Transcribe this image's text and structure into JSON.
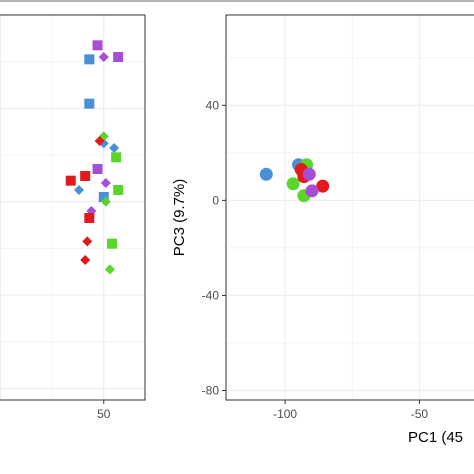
{
  "colors": {
    "red": "#e31a1c",
    "blue": "#4a90d9",
    "purple": "#a64ed6",
    "green": "#5ad62a",
    "axis": "#000000",
    "panel_border": "#333333",
    "grid": "#ececec",
    "tick_text": "#4d4d4d"
  },
  "chart_data": [
    {
      "type": "scatter",
      "panel": "left",
      "title": "",
      "xlabel": "",
      "ylabel": "",
      "x_ticks": [
        50
      ],
      "x_tick_labels": [
        "50"
      ],
      "xlim": [
        -10,
        70
      ],
      "ylim": [
        -85,
        80
      ],
      "grid": true,
      "legend": "none",
      "series": [
        {
          "color": "purple",
          "marker": "square",
          "points": [
            [
              47,
              67
            ],
            [
              57,
              62
            ],
            [
              47,
              14
            ]
          ]
        },
        {
          "color": "purple",
          "marker": "diamond",
          "points": [
            [
              50,
              62
            ],
            [
              51,
              8
            ],
            [
              44,
              -4
            ]
          ]
        },
        {
          "color": "blue",
          "marker": "square",
          "points": [
            [
              43,
              61
            ],
            [
              43,
              42
            ],
            [
              50,
              2
            ]
          ]
        },
        {
          "color": "blue",
          "marker": "diamond",
          "points": [
            [
              55,
              23
            ],
            [
              50,
              25
            ],
            [
              38,
              5
            ]
          ]
        },
        {
          "color": "green",
          "marker": "diamond",
          "points": [
            [
              50,
              28
            ],
            [
              51,
              0
            ],
            [
              53,
              -29
            ]
          ]
        },
        {
          "color": "green",
          "marker": "square",
          "points": [
            [
              56,
              19
            ],
            [
              57,
              5
            ],
            [
              54,
              -18
            ]
          ]
        },
        {
          "color": "red",
          "marker": "diamond",
          "points": [
            [
              48,
              26
            ],
            [
              42,
              -17
            ],
            [
              41,
              -25
            ]
          ]
        },
        {
          "color": "red",
          "marker": "square",
          "points": [
            [
              41,
              11
            ],
            [
              34,
              9
            ],
            [
              43,
              -7
            ]
          ]
        }
      ]
    },
    {
      "type": "scatter",
      "panel": "right",
      "title": "",
      "xlabel": "PC1 (45",
      "ylabel": "PC3 (9.7%)",
      "x_ticks": [
        -100,
        -50
      ],
      "x_tick_labels": [
        "-100",
        "-50"
      ],
      "y_ticks": [
        40,
        0,
        -40,
        -80
      ],
      "y_tick_labels": [
        "40",
        "0",
        "-40",
        "-80"
      ],
      "xlim": [
        -122,
        -20
      ],
      "ylim": [
        -84,
        78
      ],
      "grid": true,
      "legend": "none",
      "series": [
        {
          "color": "blue",
          "marker": "circle",
          "points": [
            [
              -107,
              11
            ],
            [
              -95,
              15
            ]
          ]
        },
        {
          "color": "green",
          "marker": "circle",
          "points": [
            [
              -97,
              7
            ],
            [
              -92,
              15
            ],
            [
              -93,
              2
            ]
          ]
        },
        {
          "color": "red",
          "marker": "circle",
          "points": [
            [
              -94,
              13
            ],
            [
              -86,
              6
            ],
            [
              -93,
              10
            ]
          ]
        },
        {
          "color": "purple",
          "marker": "circle",
          "points": [
            [
              -91,
              11
            ],
            [
              -90,
              4
            ]
          ]
        }
      ]
    }
  ]
}
